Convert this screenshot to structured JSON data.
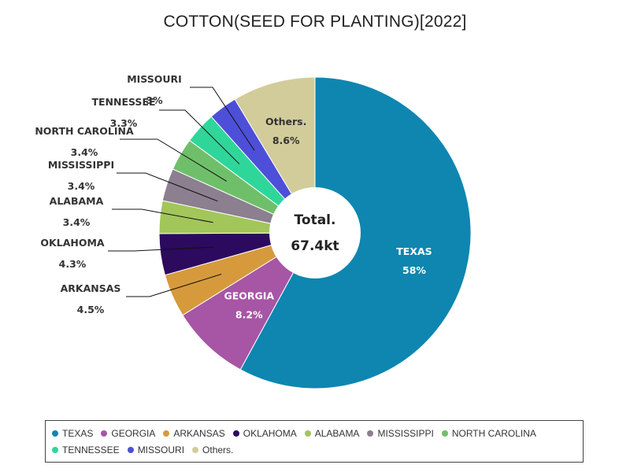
{
  "chart_data": {
    "type": "pie",
    "title": "COTTON(SEED FOR PLANTING)[2022]",
    "center_label": "Total.",
    "center_value": "67.4kt",
    "slices": [
      {
        "name": "TEXAS",
        "pct_label": "58%",
        "value": 58.0,
        "color": "#0e86b0"
      },
      {
        "name": "GEORGIA",
        "pct_label": "8.2%",
        "value": 8.2,
        "color": "#a755a5"
      },
      {
        "name": "ARKANSAS",
        "pct_label": "4.5%",
        "value": 4.5,
        "color": "#d69a3c"
      },
      {
        "name": "OKLAHOMA",
        "pct_label": "4.3%",
        "value": 4.3,
        "color": "#2c0a5e"
      },
      {
        "name": "ALABAMA",
        "pct_label": "3.4%",
        "value": 3.4,
        "color": "#a2c65a"
      },
      {
        "name": "MISSISSIPPI",
        "pct_label": "3.4%",
        "value": 3.4,
        "color": "#8b7f90"
      },
      {
        "name": "NORTH CAROLINA",
        "pct_label": "3.4%",
        "value": 3.4,
        "color": "#6fbf6a"
      },
      {
        "name": "TENNESSEE",
        "pct_label": "3.3%",
        "value": 3.3,
        "color": "#2fd69a"
      },
      {
        "name": "MISSOURI",
        "pct_label": "3%",
        "value": 3.0,
        "color": "#4e4fd8"
      },
      {
        "name": "Others.",
        "pct_label": "8.6%",
        "value": 8.6,
        "color": "#d2cc9a"
      }
    ],
    "legend_placement": "bottom"
  }
}
